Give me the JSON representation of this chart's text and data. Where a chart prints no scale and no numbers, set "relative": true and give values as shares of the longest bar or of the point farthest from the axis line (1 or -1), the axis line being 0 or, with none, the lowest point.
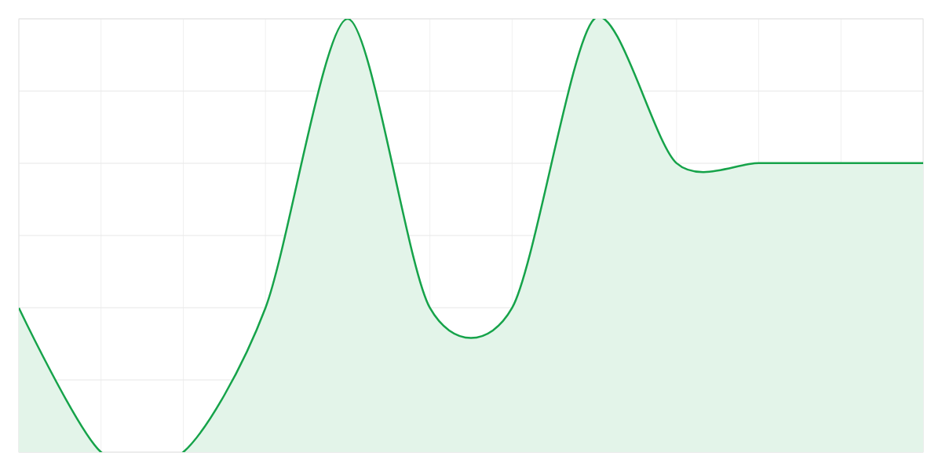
{
  "chart_data": {
    "type": "area",
    "categories": [
      null,
      null,
      null,
      null,
      null,
      null,
      null,
      null,
      null,
      null,
      null,
      null
    ],
    "values": [
      0.333,
      0,
      0,
      0.333,
      1,
      0.333,
      0.333,
      1,
      0.667,
      0.667,
      0.667,
      0.667
    ],
    "color": "#16a34a",
    "relative": true,
    "grid": true
  }
}
